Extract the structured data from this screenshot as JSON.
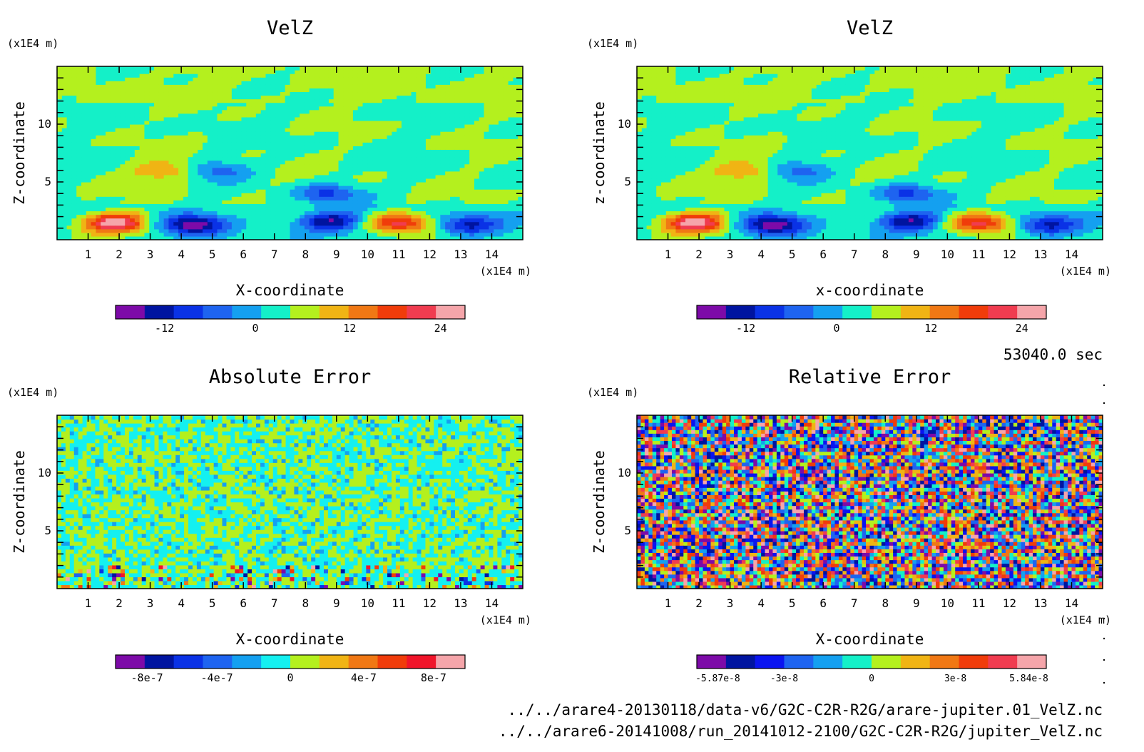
{
  "figure": {
    "time_label": "53040.0 sec",
    "files": [
      "../../arare4-20130118/data-v6/G2C-C2R-R2G/arare-jupiter.01_VelZ.nc",
      "../../arare6-20141008/run_20141012-2100/G2C-C2R-R2G/jupiter_VelZ.nc"
    ]
  },
  "chart_data": [
    {
      "type": "heatmap",
      "title": "VelZ",
      "xlabel": "X-coordinate",
      "ylabel": "Z-coordinate",
      "x_unit": "(x1E4 m)",
      "y_unit": "(x1E4 m)",
      "xlim": [
        0,
        15
      ],
      "ylim": [
        0,
        15
      ],
      "x_ticks": [
        1,
        2,
        3,
        4,
        5,
        6,
        7,
        8,
        9,
        10,
        11,
        12,
        13,
        14
      ],
      "y_ticks": [
        5,
        10
      ],
      "colorbar": {
        "colors": [
          "#7d0aa8",
          "#0014a0",
          "#0a32e6",
          "#1e64f0",
          "#14a0f0",
          "#14f0c8",
          "#b4f01e",
          "#f0b414",
          "#f07814",
          "#f03c0a",
          "#f03c50",
          "#f5a5aa"
        ],
        "tick_labels": [
          "-12",
          "0",
          "12",
          "24"
        ]
      },
      "features": [
        {
          "x": 1.9,
          "z": 1.5,
          "sign": 1,
          "magnitude": 28
        },
        {
          "x": 4.4,
          "z": 1.3,
          "sign": -1,
          "magnitude": 22
        },
        {
          "x": 8.8,
          "z": 1.6,
          "sign": -1,
          "magnitude": 20
        },
        {
          "x": 11.0,
          "z": 1.5,
          "sign": 1,
          "magnitude": 22
        },
        {
          "x": 13.2,
          "z": 1.3,
          "sign": -1,
          "magnitude": 16
        },
        {
          "x": 3.5,
          "z": 6.0,
          "sign": 1,
          "magnitude": 10
        },
        {
          "x": 5.2,
          "z": 6.0,
          "sign": -1,
          "magnitude": 10
        },
        {
          "x": 8.7,
          "z": 4.0,
          "sign": -1,
          "magnitude": 14
        }
      ]
    },
    {
      "type": "heatmap",
      "title": "VelZ",
      "xlabel": "x-coordinate",
      "ylabel": "z-coordinate",
      "x_unit": "(x1E4 m)",
      "y_unit": "(x1E4 m)",
      "xlim": [
        0,
        15
      ],
      "ylim": [
        0,
        15
      ],
      "x_ticks": [
        1,
        2,
        3,
        4,
        5,
        6,
        7,
        8,
        9,
        10,
        11,
        12,
        13,
        14
      ],
      "y_ticks": [
        5,
        10
      ],
      "colorbar": {
        "colors": [
          "#7d0aa8",
          "#0014a0",
          "#0a32e6",
          "#1e64f0",
          "#14a0f0",
          "#14f0c8",
          "#b4f01e",
          "#f0b414",
          "#f07814",
          "#f03c0a",
          "#f03c50",
          "#f5a5aa"
        ],
        "tick_labels": [
          "-12",
          "0",
          "12",
          "24"
        ]
      },
      "features": [
        {
          "x": 1.9,
          "z": 1.5,
          "sign": 1,
          "magnitude": 28
        },
        {
          "x": 4.4,
          "z": 1.3,
          "sign": -1,
          "magnitude": 22
        },
        {
          "x": 8.8,
          "z": 1.6,
          "sign": -1,
          "magnitude": 20
        },
        {
          "x": 11.0,
          "z": 1.5,
          "sign": 1,
          "magnitude": 22
        },
        {
          "x": 13.2,
          "z": 1.3,
          "sign": -1,
          "magnitude": 16
        },
        {
          "x": 3.5,
          "z": 6.0,
          "sign": 1,
          "magnitude": 10
        },
        {
          "x": 5.2,
          "z": 6.0,
          "sign": -1,
          "magnitude": 10
        },
        {
          "x": 8.7,
          "z": 4.0,
          "sign": -1,
          "magnitude": 14
        }
      ]
    },
    {
      "type": "heatmap",
      "title": "Absolute Error",
      "xlabel": "X-coordinate",
      "ylabel": "Z-coordinate",
      "x_unit": "(x1E4 m)",
      "y_unit": "(x1E4 m)",
      "xlim": [
        0,
        15
      ],
      "ylim": [
        0,
        15
      ],
      "x_ticks": [
        1,
        2,
        3,
        4,
        5,
        6,
        7,
        8,
        9,
        10,
        11,
        12,
        13,
        14
      ],
      "y_ticks": [
        5,
        10
      ],
      "colorbar": {
        "colors": [
          "#7d0aa8",
          "#0014a0",
          "#0a32e6",
          "#1e64f0",
          "#14a0f0",
          "#14f0f0",
          "#b4f01e",
          "#f0b414",
          "#f07814",
          "#f03c0a",
          "#f0142a",
          "#f5a5aa"
        ],
        "tick_labels": [
          "-8e-7",
          "-4e-7",
          "0",
          "4e-7",
          "8e-7"
        ]
      }
    },
    {
      "type": "heatmap",
      "title": "Relative Error",
      "xlabel": "X-coordinate",
      "ylabel": "Z-coordinate",
      "x_unit": "(x1E4 m)",
      "y_unit": "(x1E4 m)",
      "xlim": [
        0,
        15
      ],
      "ylim": [
        0,
        15
      ],
      "x_ticks": [
        1,
        2,
        3,
        4,
        5,
        6,
        7,
        8,
        9,
        10,
        11,
        12,
        13,
        14
      ],
      "y_ticks": [
        5,
        10
      ],
      "colorbar": {
        "colors": [
          "#7d0aa8",
          "#0014a0",
          "#0a14f0",
          "#1e64f0",
          "#14a0f0",
          "#14f0c8",
          "#b4f01e",
          "#f0b414",
          "#f07814",
          "#f03c0a",
          "#f03c50",
          "#f5a5aa"
        ],
        "tick_labels": [
          "-5.87e-8",
          "-3e-8",
          "0",
          "3e-8",
          "5.84e-8"
        ]
      }
    }
  ]
}
